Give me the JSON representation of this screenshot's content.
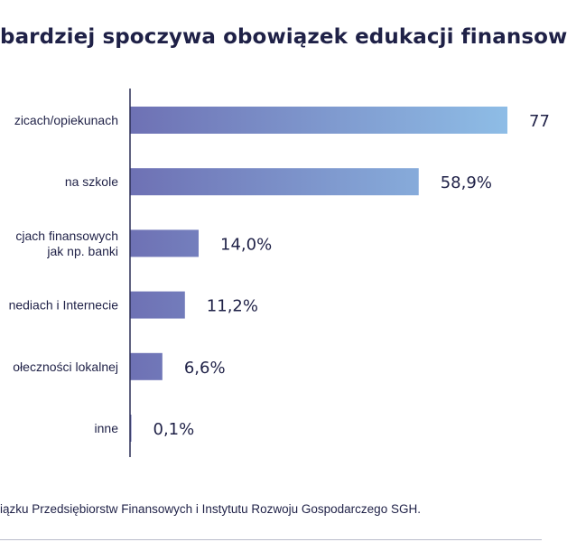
{
  "chart_data": {
    "type": "bar",
    "orientation": "horizontal",
    "title": "bardziej spoczywa obowiązek edukacji finansow",
    "categories": [
      [
        "zicach/opiekunach"
      ],
      [
        "na szkole"
      ],
      [
        "cjach finansowych",
        "jak np. banki"
      ],
      [
        "nediach i Internecie"
      ],
      [
        "ołeczności lokalnej"
      ],
      [
        "inne"
      ]
    ],
    "values": [
      77,
      58.9,
      14.0,
      11.2,
      6.6,
      0.1
    ],
    "value_labels": [
      "77",
      "58,9%",
      "14,0%",
      "11,2%",
      "6,6%",
      "0,1%"
    ],
    "xlim": [
      0,
      77
    ],
    "grid": false,
    "legend": "none",
    "colors": {
      "bar_start": "#6e71b4",
      "bar_end": "#8ebde6",
      "axis": "#2a2d55",
      "text": "#1f2147"
    }
  },
  "source": "iązku Przedsiębiorstw Finansowych i Instytutu Rozwoju Gospodarczego SGH."
}
